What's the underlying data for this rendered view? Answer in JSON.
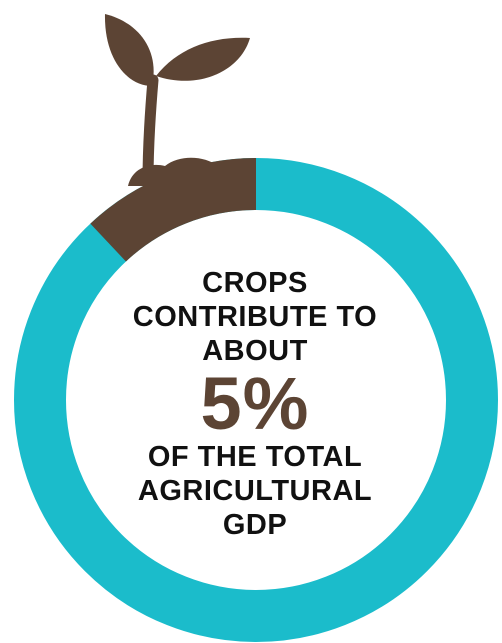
{
  "text": {
    "lines_top": [
      "CROPS",
      "CONTRIBUTE TO",
      "ABOUT"
    ],
    "percent_label": "5%",
    "lines_bottom": [
      "OF THE TOTAL",
      "AGRICULTURAL",
      "GDP"
    ]
  },
  "colors": {
    "ring": "#1bbccb",
    "soil": "#5c4434",
    "text": "#111111"
  },
  "icons": [
    "sprout-icon"
  ],
  "chart_data": {
    "type": "pie",
    "style": "donut",
    "slices": [
      {
        "value": 5,
        "color": "#5c4434"
      },
      {
        "value": 95,
        "color": "#1bbccb"
      }
    ]
  }
}
